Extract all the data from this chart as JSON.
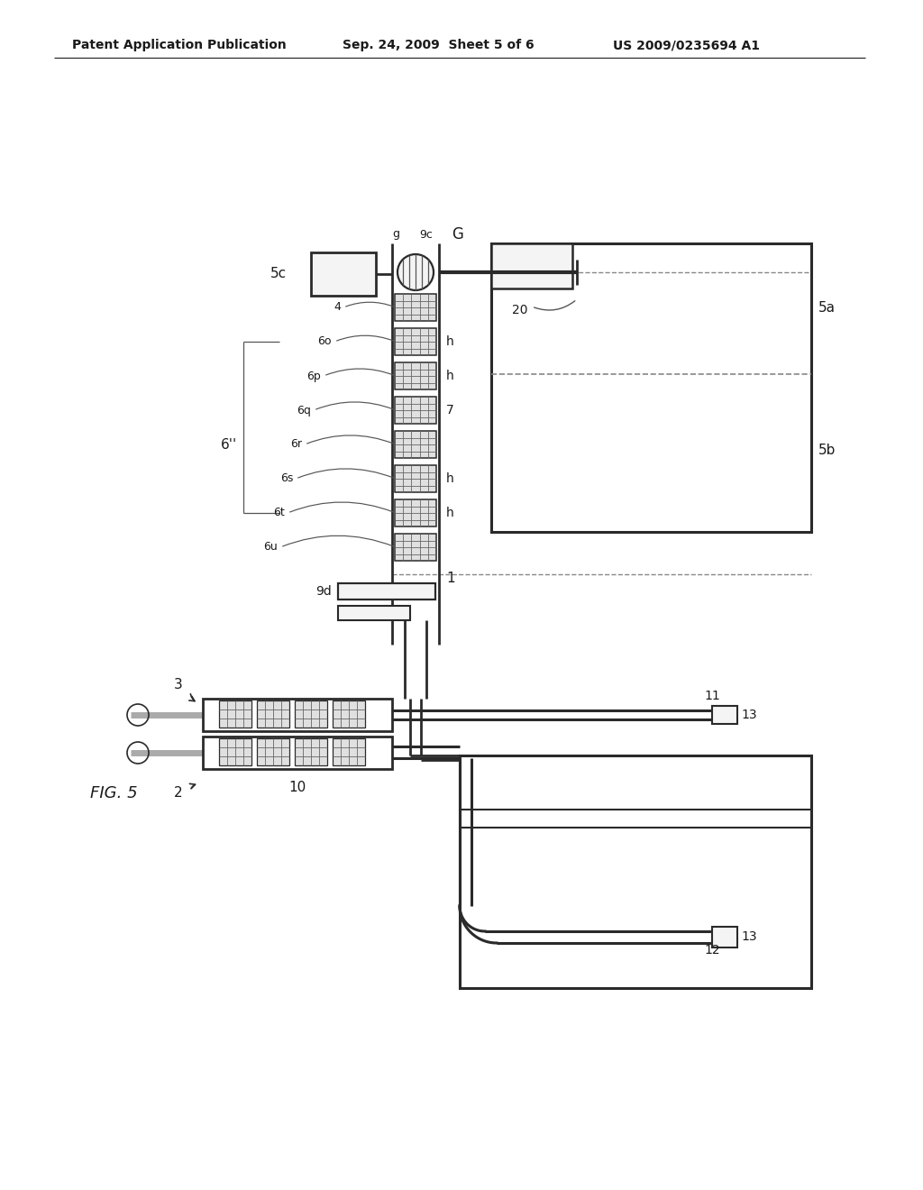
{
  "bg": "#ffffff",
  "lc": "#2a2a2a",
  "header_left": "Patent Application Publication",
  "header_mid": "Sep. 24, 2009  Sheet 5 of 6",
  "header_right": "US 2009/0235694 A1",
  "fig_label": "FIG. 5",
  "label_color": "#1a1a1a"
}
